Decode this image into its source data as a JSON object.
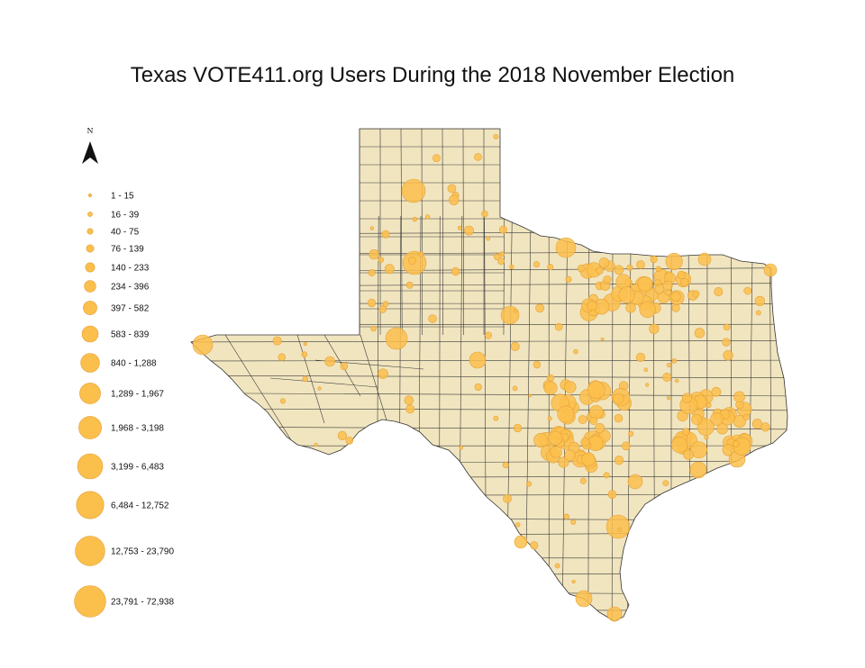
{
  "title": "Texas VOTE411.org Users During the 2018 November Election",
  "north_arrow_label": "N",
  "colors": {
    "state_fill": "#f1e5bf",
    "county_stroke": "#3a3a3a",
    "bubble_fill": "#fbbf4c",
    "bubble_stroke": "#e4a23b"
  },
  "legend": {
    "classes": [
      {
        "label": "1 - 15"
      },
      {
        "label": "16 - 39"
      },
      {
        "label": "40 - 75"
      },
      {
        "label": "76 - 139"
      },
      {
        "label": "140 - 233"
      },
      {
        "label": "234 - 396"
      },
      {
        "label": "397 - 582"
      },
      {
        "label": "583 - 839"
      },
      {
        "label": "840 - 1,288"
      },
      {
        "label": "1,289 - 1,967"
      },
      {
        "label": "1,968 - 3,198"
      },
      {
        "label": "3,199 - 6,483"
      },
      {
        "label": "6,484 - 12,752"
      },
      {
        "label": "12,753 - 23,790"
      },
      {
        "label": "23,791 - 72,938"
      }
    ]
  }
}
